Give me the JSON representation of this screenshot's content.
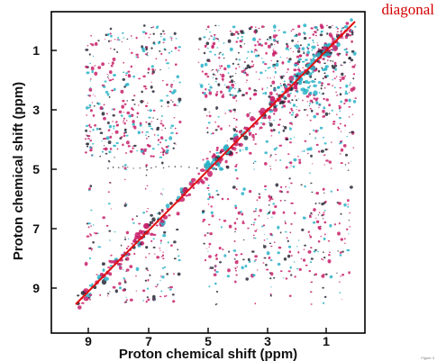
{
  "figure": {
    "callout_label": "diagonal",
    "corner_note": "Figure 3",
    "x_axis": {
      "title": "Proton chemical shift (ppm)",
      "tick_labels": [
        "9",
        "7",
        "5",
        "3",
        "1"
      ]
    },
    "y_axis": {
      "title": "Proton chemical shift (ppm)",
      "tick_labels": [
        "1",
        "3",
        "5",
        "7",
        "9"
      ]
    },
    "colors": {
      "diagonal_line": "#e01010",
      "peak_magenta": "#c8206a",
      "peak_cyan": "#2bb3c8",
      "peak_dark": "#2a2a3a",
      "frame": "#000000",
      "callout": "#d40000"
    }
  }
}
